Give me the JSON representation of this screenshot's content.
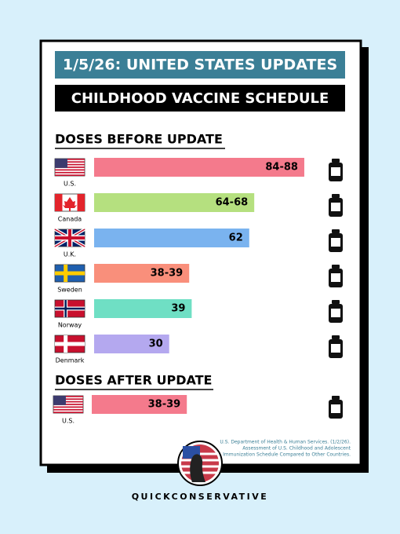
{
  "header": {
    "title": "1/5/26: UNITED STATES UPDATES",
    "subtitle": "CHILDHOOD VACCINE SCHEDULE"
  },
  "chart_data": [
    {
      "type": "bar",
      "title": "DOSES BEFORE UPDATE",
      "categories": [
        "U.S.",
        "Canada",
        "U.K.",
        "Sweden",
        "Norway",
        "Denmark"
      ],
      "values": [
        84,
        64,
        62,
        38,
        39,
        30
      ],
      "value_labels": [
        "84-88",
        "64-68",
        "62",
        "38-39",
        "39",
        "30"
      ],
      "colors": [
        "#f47a8c",
        "#b5e07f",
        "#7ab3ef",
        "#f98f7b",
        "#6fdfc4",
        "#b4a8ef"
      ]
    },
    {
      "type": "bar",
      "title": "DOSES AFTER UPDATE",
      "categories": [
        "U.S."
      ],
      "values": [
        38
      ],
      "value_labels": [
        "38-39"
      ],
      "colors": [
        "#f47a8c"
      ]
    }
  ],
  "source": [
    "U.S. Department of Health & Human Services. (1/2/26).",
    "Assessment of U.S. Childhood and Adolescent",
    "Immunization Schedule Compared to Other Countries."
  ],
  "footer": "QUICKCONSERVATIVE"
}
